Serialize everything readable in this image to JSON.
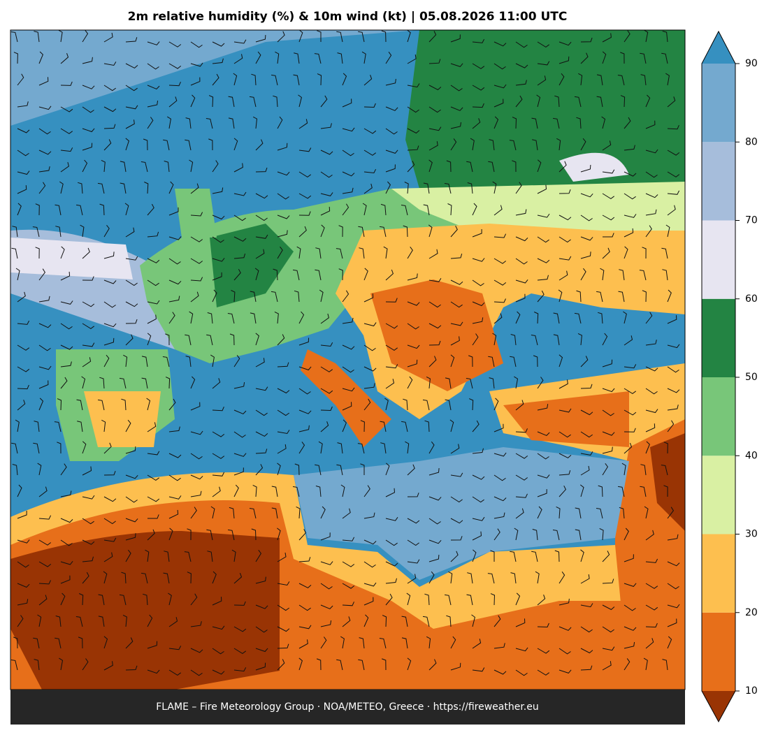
{
  "title": "2m relative humidity (%) & 10m wind (kt)  |  05.08.2026 11:00 UTC",
  "footer": "FLAME – Fire Meteorology Group · NOA/METEO, Greece · https://fireweather.eu",
  "colorbar": {
    "ticks": [
      10,
      20,
      30,
      40,
      50,
      60,
      70,
      80,
      90
    ],
    "colors": [
      "#e76f1a",
      "#fdbf4f",
      "#d9f0a3",
      "#78c679",
      "#238443",
      "#e7e5f1",
      "#a6bddb",
      "#74a9cf"
    ],
    "under_color": "#993404",
    "over_color": "#3690c0"
  }
}
